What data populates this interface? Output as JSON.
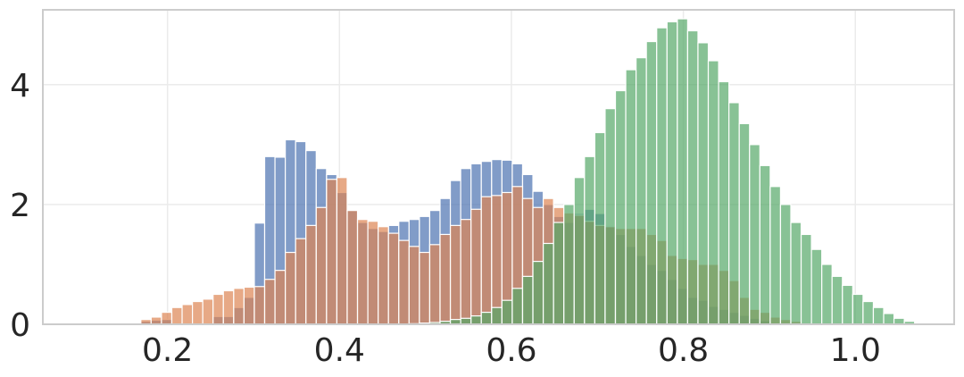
{
  "chart_data": {
    "type": "bar",
    "title": "",
    "xlabel": "",
    "ylabel": "",
    "xlim": [
      0.055,
      1.115
    ],
    "ylim": [
      0,
      5.25
    ],
    "xticks": [
      {
        "value": 0.2,
        "label": "0.2"
      },
      {
        "value": 0.4,
        "label": "0.4"
      },
      {
        "value": 0.6,
        "label": "0.6"
      },
      {
        "value": 0.8,
        "label": "0.8"
      },
      {
        "value": 1.0,
        "label": "1.0"
      }
    ],
    "yticks": [
      {
        "value": 0,
        "label": "0"
      },
      {
        "value": 2,
        "label": "2"
      },
      {
        "value": 4,
        "label": "4"
      }
    ],
    "grid": true,
    "legend": "none",
    "bin_width": 0.012,
    "series": [
      {
        "color": "#4c72b0",
        "opacity": 0.7,
        "bins": [
          [
            0.175,
            0.05
          ],
          [
            0.187,
            0.07
          ],
          [
            0.199,
            0.08
          ],
          [
            0.211,
            0.02
          ],
          [
            0.235,
            0.01
          ],
          [
            0.247,
            0.02
          ],
          [
            0.259,
            0.13
          ],
          [
            0.271,
            0.13
          ],
          [
            0.283,
            0.28
          ],
          [
            0.295,
            0.45
          ],
          [
            0.307,
            1.69
          ],
          [
            0.319,
            2.8
          ],
          [
            0.331,
            2.79
          ],
          [
            0.343,
            3.08
          ],
          [
            0.355,
            3.05
          ],
          [
            0.367,
            2.9
          ],
          [
            0.379,
            2.6
          ],
          [
            0.391,
            2.5
          ],
          [
            0.403,
            2.2
          ],
          [
            0.415,
            1.9
          ],
          [
            0.427,
            1.7
          ],
          [
            0.439,
            1.6
          ],
          [
            0.451,
            1.55
          ],
          [
            0.463,
            1.65
          ],
          [
            0.475,
            1.72
          ],
          [
            0.487,
            1.75
          ],
          [
            0.499,
            1.8
          ],
          [
            0.511,
            1.9
          ],
          [
            0.523,
            2.1
          ],
          [
            0.535,
            2.4
          ],
          [
            0.547,
            2.6
          ],
          [
            0.559,
            2.68
          ],
          [
            0.571,
            2.72
          ],
          [
            0.583,
            2.75
          ],
          [
            0.595,
            2.74
          ],
          [
            0.607,
            2.68
          ],
          [
            0.619,
            2.5
          ],
          [
            0.631,
            2.22
          ],
          [
            0.643,
            2.0
          ],
          [
            0.655,
            1.8
          ],
          [
            0.667,
            1.7
          ],
          [
            0.679,
            1.85
          ],
          [
            0.691,
            1.92
          ],
          [
            0.703,
            1.85
          ],
          [
            0.715,
            1.65
          ],
          [
            0.727,
            1.5
          ],
          [
            0.739,
            1.3
          ],
          [
            0.751,
            1.15
          ],
          [
            0.763,
            1.0
          ],
          [
            0.775,
            0.9
          ],
          [
            0.787,
            0.75
          ],
          [
            0.799,
            0.6
          ],
          [
            0.811,
            0.45
          ],
          [
            0.823,
            0.4
          ],
          [
            0.835,
            0.3
          ],
          [
            0.847,
            0.25
          ],
          [
            0.859,
            0.2
          ],
          [
            0.871,
            0.15
          ],
          [
            0.883,
            0.1
          ],
          [
            0.895,
            0.06
          ]
        ]
      },
      {
        "color": "#dd8452",
        "opacity": 0.7,
        "bins": [
          [
            0.175,
            0.08
          ],
          [
            0.187,
            0.12
          ],
          [
            0.199,
            0.2
          ],
          [
            0.211,
            0.28
          ],
          [
            0.223,
            0.33
          ],
          [
            0.235,
            0.38
          ],
          [
            0.247,
            0.42
          ],
          [
            0.259,
            0.5
          ],
          [
            0.271,
            0.56
          ],
          [
            0.283,
            0.6
          ],
          [
            0.295,
            0.62
          ],
          [
            0.307,
            0.63
          ],
          [
            0.319,
            0.75
          ],
          [
            0.331,
            0.9
          ],
          [
            0.343,
            1.2
          ],
          [
            0.355,
            1.43
          ],
          [
            0.367,
            1.65
          ],
          [
            0.379,
            1.95
          ],
          [
            0.391,
            2.42
          ],
          [
            0.403,
            2.45
          ],
          [
            0.415,
            1.9
          ],
          [
            0.427,
            1.75
          ],
          [
            0.439,
            1.72
          ],
          [
            0.451,
            1.63
          ],
          [
            0.463,
            1.52
          ],
          [
            0.475,
            1.4
          ],
          [
            0.487,
            1.3
          ],
          [
            0.499,
            1.2
          ],
          [
            0.511,
            1.33
          ],
          [
            0.523,
            1.5
          ],
          [
            0.535,
            1.65
          ],
          [
            0.547,
            1.75
          ],
          [
            0.559,
            1.92
          ],
          [
            0.571,
            2.13
          ],
          [
            0.583,
            2.15
          ],
          [
            0.595,
            2.2
          ],
          [
            0.607,
            2.3
          ],
          [
            0.619,
            2.1
          ],
          [
            0.631,
            1.95
          ],
          [
            0.643,
            2.1
          ],
          [
            0.655,
            1.95
          ],
          [
            0.667,
            1.86
          ],
          [
            0.679,
            1.82
          ],
          [
            0.691,
            1.72
          ],
          [
            0.703,
            1.65
          ],
          [
            0.715,
            1.63
          ],
          [
            0.727,
            1.6
          ],
          [
            0.739,
            1.6
          ],
          [
            0.751,
            1.6
          ],
          [
            0.763,
            1.5
          ],
          [
            0.775,
            1.4
          ],
          [
            0.787,
            1.15
          ],
          [
            0.799,
            1.1
          ],
          [
            0.811,
            1.08
          ],
          [
            0.823,
            1.0
          ],
          [
            0.835,
            1.0
          ],
          [
            0.847,
            0.9
          ],
          [
            0.859,
            0.73
          ],
          [
            0.871,
            0.45
          ],
          [
            0.883,
            0.25
          ],
          [
            0.895,
            0.2
          ],
          [
            0.907,
            0.12
          ],
          [
            0.919,
            0.08
          ],
          [
            0.931,
            0.05
          ]
        ]
      },
      {
        "color": "#55a868",
        "opacity": 0.7,
        "bins": [
          [
            0.487,
            0.01
          ],
          [
            0.499,
            0.02
          ],
          [
            0.511,
            0.03
          ],
          [
            0.523,
            0.05
          ],
          [
            0.535,
            0.08
          ],
          [
            0.547,
            0.1
          ],
          [
            0.559,
            0.14
          ],
          [
            0.571,
            0.2
          ],
          [
            0.583,
            0.28
          ],
          [
            0.595,
            0.4
          ],
          [
            0.607,
            0.6
          ],
          [
            0.619,
            0.8
          ],
          [
            0.631,
            1.05
          ],
          [
            0.643,
            1.35
          ],
          [
            0.655,
            1.7
          ],
          [
            0.667,
            2.0
          ],
          [
            0.679,
            2.45
          ],
          [
            0.691,
            2.8
          ],
          [
            0.703,
            3.2
          ],
          [
            0.715,
            3.6
          ],
          [
            0.727,
            3.9
          ],
          [
            0.739,
            4.25
          ],
          [
            0.751,
            4.45
          ],
          [
            0.763,
            4.72
          ],
          [
            0.775,
            4.95
          ],
          [
            0.787,
            5.05
          ],
          [
            0.799,
            5.1
          ],
          [
            0.811,
            4.9
          ],
          [
            0.823,
            4.7
          ],
          [
            0.835,
            4.4
          ],
          [
            0.847,
            4.05
          ],
          [
            0.859,
            3.7
          ],
          [
            0.871,
            3.35
          ],
          [
            0.883,
            3.0
          ],
          [
            0.895,
            2.65
          ],
          [
            0.907,
            2.3
          ],
          [
            0.919,
            2.0
          ],
          [
            0.931,
            1.7
          ],
          [
            0.943,
            1.5
          ],
          [
            0.955,
            1.25
          ],
          [
            0.967,
            1.0
          ],
          [
            0.979,
            0.8
          ],
          [
            0.991,
            0.65
          ],
          [
            1.003,
            0.5
          ],
          [
            1.015,
            0.38
          ],
          [
            1.027,
            0.28
          ],
          [
            1.039,
            0.18
          ],
          [
            1.051,
            0.1
          ],
          [
            1.063,
            0.05
          ]
        ]
      }
    ]
  }
}
